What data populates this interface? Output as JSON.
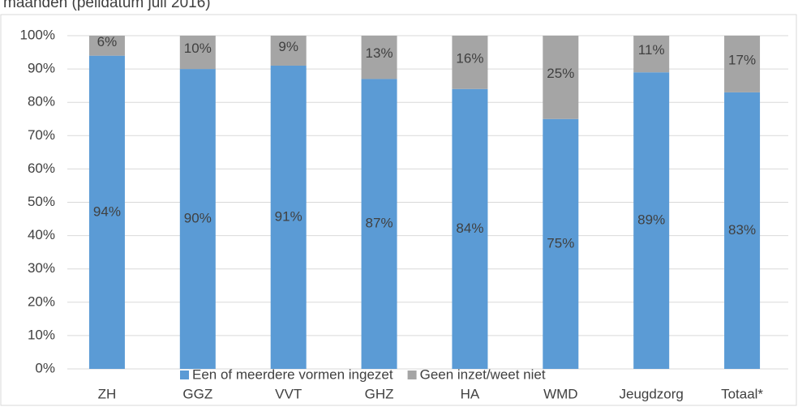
{
  "chart_data": {
    "type": "stacked_bar",
    "title": "maanden (peildatum juli 2016)",
    "categories": [
      "ZH",
      "GGZ",
      "VVT",
      "GHZ",
      "HA",
      "WMD",
      "Jeugdzorg",
      "Totaal*"
    ],
    "series": [
      {
        "name": "Een of meerdere vormen ingezet",
        "color": "#5b9bd5",
        "values": [
          94,
          90,
          91,
          87,
          84,
          75,
          89,
          83
        ],
        "value_labels": [
          "94%",
          "90%",
          "91%",
          "87%",
          "84%",
          "75%",
          "89%",
          "83%"
        ]
      },
      {
        "name": "Geen inzet/weet niet",
        "color": "#a5a5a5",
        "values": [
          6,
          10,
          9,
          13,
          16,
          25,
          11,
          17
        ],
        "value_labels": [
          "6%",
          "10%",
          "9%",
          "13%",
          "16%",
          "25%",
          "11%",
          "17%"
        ]
      }
    ],
    "ylim": [
      0,
      100
    ],
    "yticks": [
      {
        "value": 0,
        "label": "0%"
      },
      {
        "value": 10,
        "label": "10%"
      },
      {
        "value": 20,
        "label": "20%"
      },
      {
        "value": 30,
        "label": "30%"
      },
      {
        "value": 40,
        "label": "40%"
      },
      {
        "value": 50,
        "label": "50%"
      },
      {
        "value": 60,
        "label": "60%"
      },
      {
        "value": 70,
        "label": "70%"
      },
      {
        "value": 80,
        "label": "80%"
      },
      {
        "value": 90,
        "label": "90%"
      },
      {
        "value": 100,
        "label": "100%"
      }
    ],
    "grid": true,
    "legend": "bottom"
  }
}
